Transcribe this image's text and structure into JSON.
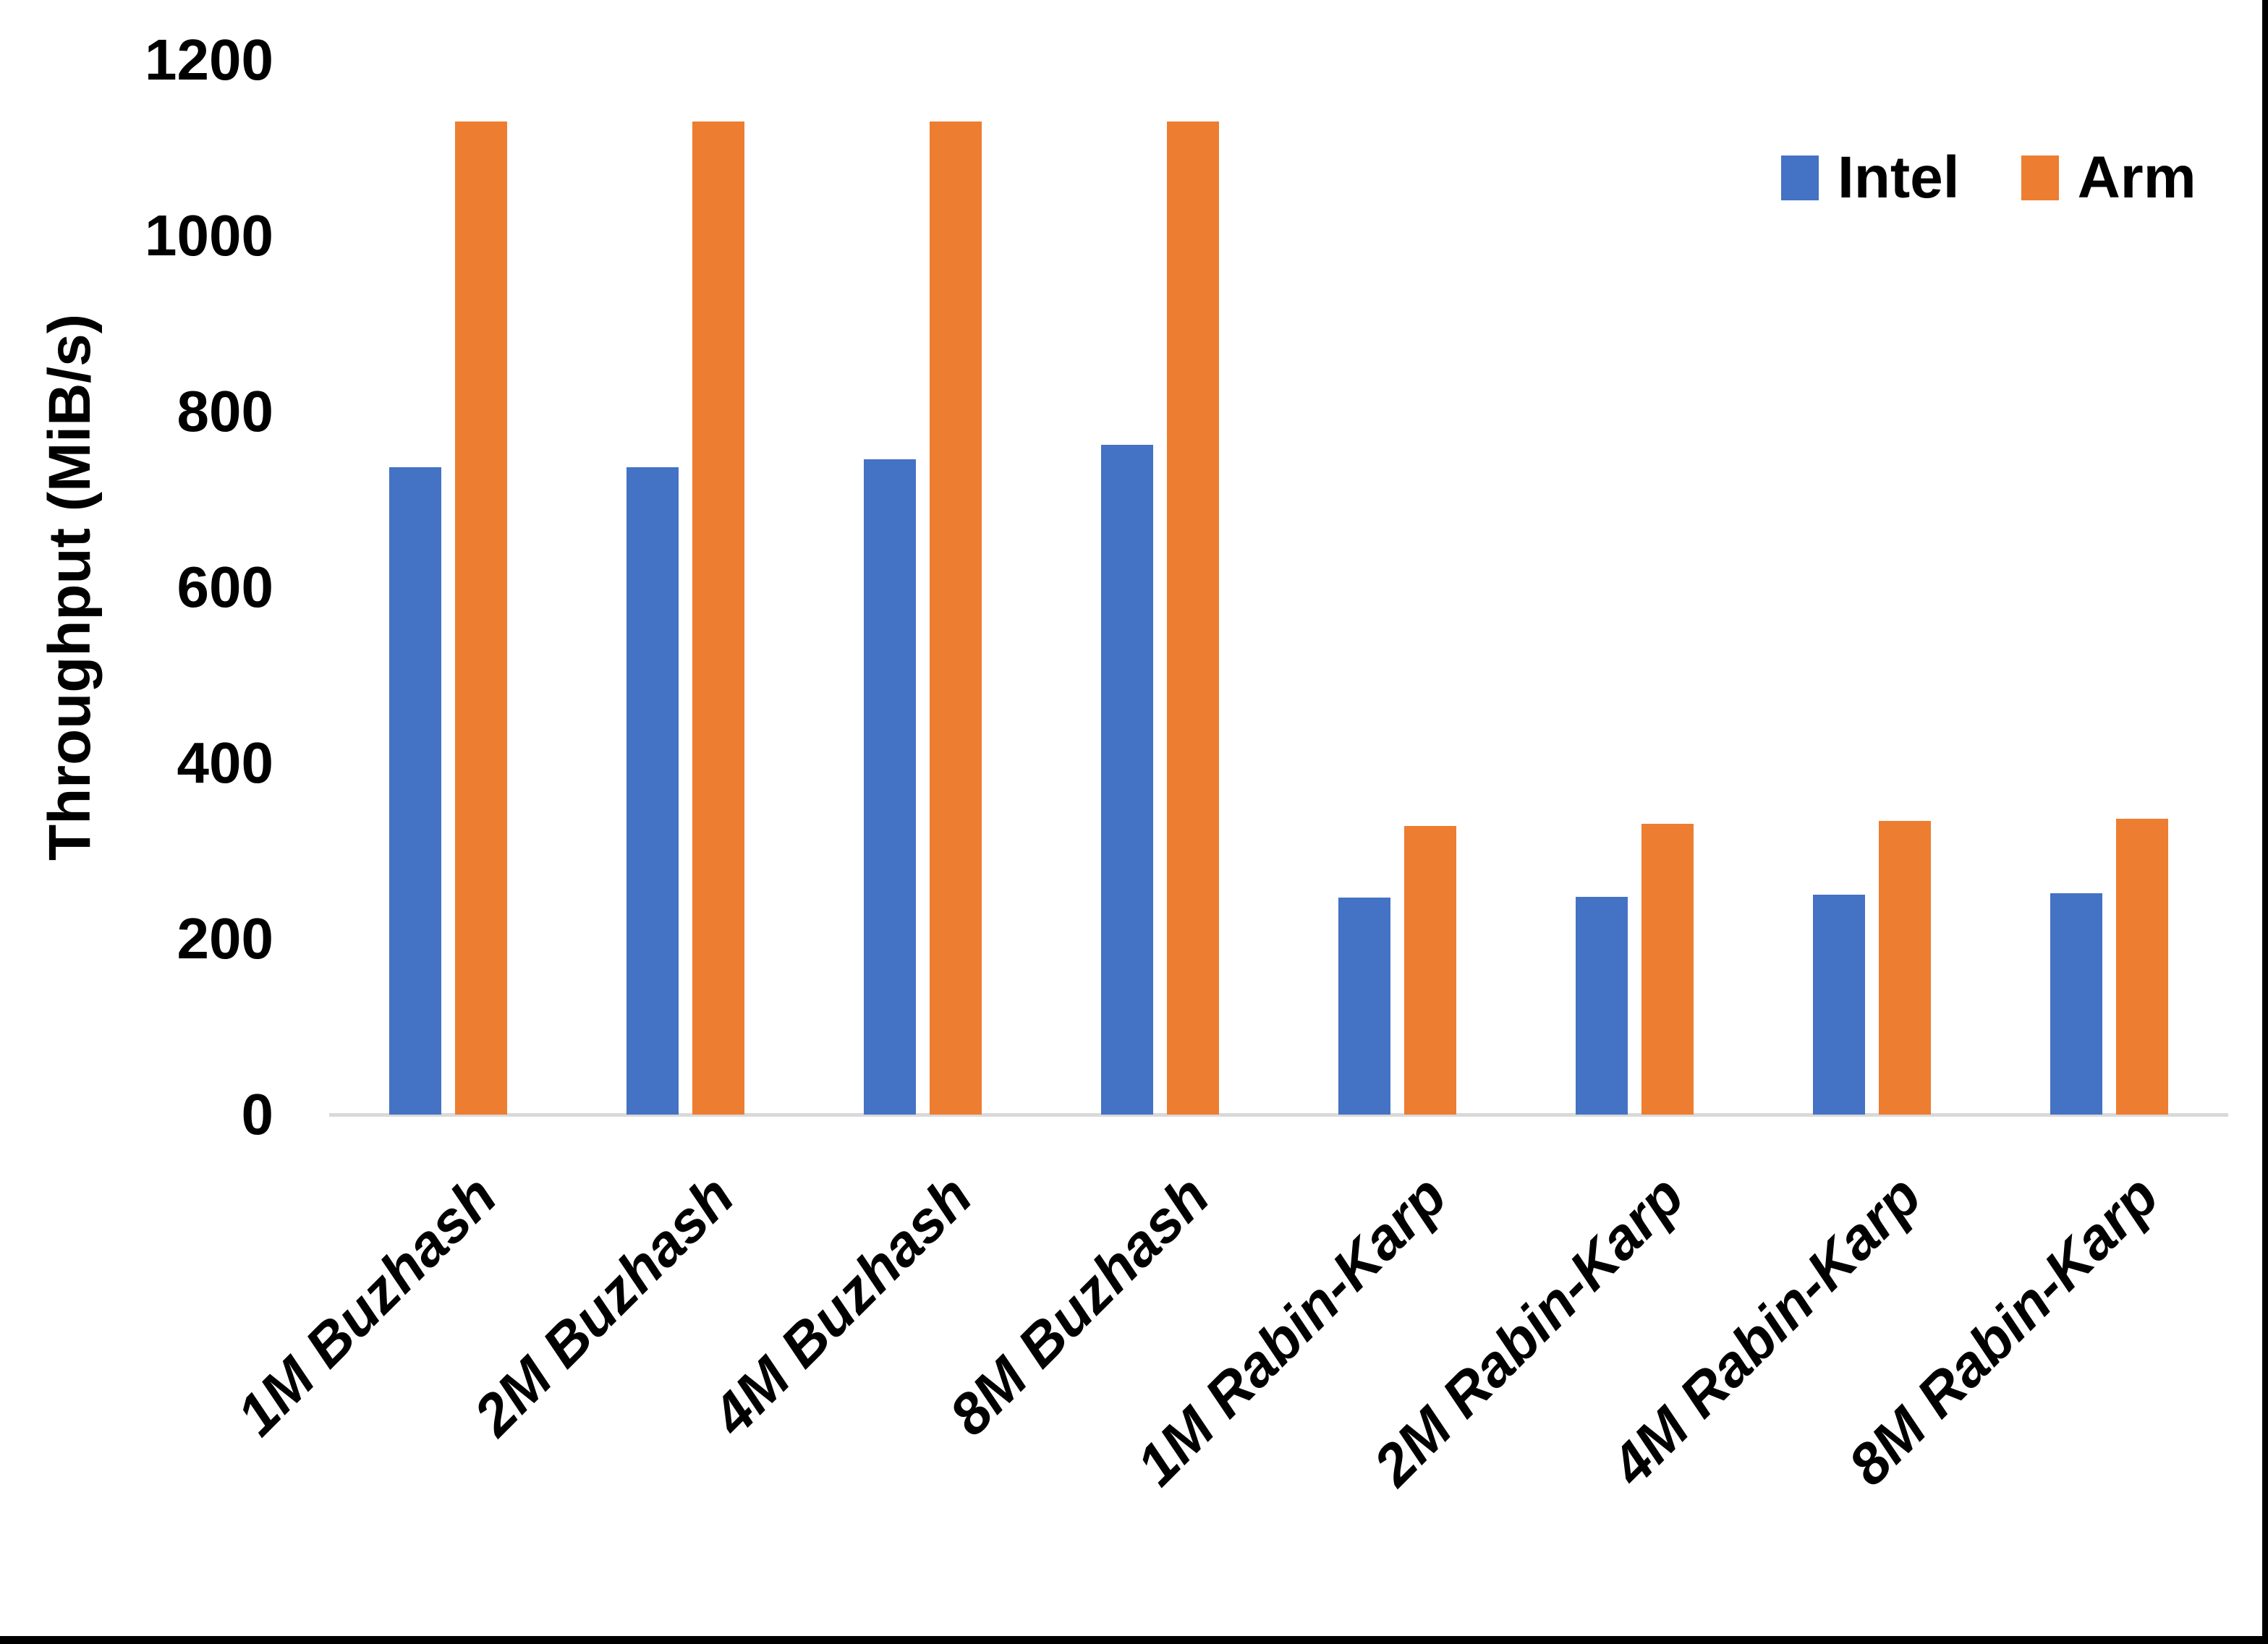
{
  "chart_data": {
    "type": "bar",
    "title": "",
    "ylabel": "Throughput (MiB/s)",
    "xlabel": "",
    "ylim": [
      0,
      1200
    ],
    "ytick_step": 200,
    "yticks": [
      0,
      200,
      400,
      600,
      800,
      1000,
      1200
    ],
    "grid": false,
    "legend_position": "top-right",
    "categories": [
      "1M Buzhash",
      "2M Buzhash",
      "4M Buzhash",
      "8M Buzhash",
      "1M Rabin-Karp",
      "2M Rabin-Karp",
      "4M Rabin-Karp",
      "8M Rabin-Karp"
    ],
    "series": [
      {
        "name": "Intel",
        "color": "#4472C4",
        "values": [
          737,
          737,
          746,
          762,
          247,
          248,
          250,
          252
        ]
      },
      {
        "name": "Arm",
        "color": "#ED7D31",
        "values": [
          1130,
          1130,
          1130,
          1130,
          328,
          331,
          334,
          337
        ]
      }
    ]
  },
  "colors": {
    "background": "#FFFFFF",
    "axis_line": "#D9D9D9",
    "text": "#000000",
    "window_border": "#000000"
  }
}
